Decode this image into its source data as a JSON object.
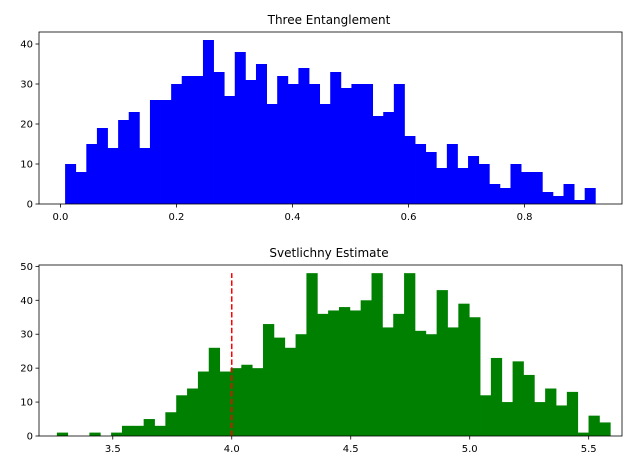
{
  "chart_data": [
    {
      "type": "bar",
      "subtype": "histogram",
      "title": "Three Entanglement",
      "xlabel": "",
      "ylabel": "",
      "color": "#0000ff",
      "grid": false,
      "xlim": [
        -0.037,
        0.968
      ],
      "ylim": [
        0,
        43
      ],
      "bin_start": 0.008,
      "bin_width": 0.01828,
      "counts": [
        10,
        8,
        15,
        19,
        14,
        21,
        23,
        14,
        26,
        26,
        30,
        32,
        32,
        41,
        33,
        27,
        38,
        31,
        35,
        25,
        32,
        30,
        34,
        30,
        25,
        33,
        29,
        30,
        30,
        22,
        23,
        30,
        17,
        15,
        13,
        9,
        15,
        9,
        12,
        10,
        5,
        4,
        10,
        8,
        8,
        3,
        2,
        5,
        1,
        4
      ],
      "x_ticks": [
        0.0,
        0.2,
        0.4,
        0.6,
        0.8
      ],
      "x_tick_labels": [
        "0.0",
        "0.2",
        "0.4",
        "0.6",
        "0.8"
      ],
      "y_ticks": [
        0,
        10,
        20,
        30,
        40
      ],
      "y_tick_labels": [
        "0",
        "10",
        "20",
        "30",
        "40"
      ]
    },
    {
      "type": "bar",
      "subtype": "histogram",
      "title": "Svetlichny Estimate",
      "xlabel": "",
      "ylabel": "",
      "color": "#008000",
      "grid": false,
      "xlim": [
        3.19,
        5.64
      ],
      "ylim": [
        0,
        50.4
      ],
      "bin_start": 3.265,
      "bin_width": 0.0456,
      "counts": [
        1,
        0,
        0,
        1,
        0,
        1,
        3,
        3,
        5,
        3,
        7,
        12,
        14,
        19,
        26,
        19,
        20,
        21,
        20,
        33,
        29,
        26,
        30,
        48,
        36,
        37,
        38,
        37,
        40,
        48,
        32,
        36,
        48,
        31,
        30,
        43,
        32,
        39,
        35,
        12,
        23,
        10,
        22,
        18,
        10,
        14,
        9,
        13,
        1,
        6,
        4
      ],
      "x_ticks": [
        3.5,
        4.0,
        4.5,
        5.0,
        5.5
      ],
      "x_tick_labels": [
        "3.5",
        "4.0",
        "4.5",
        "5.0",
        "5.5"
      ],
      "y_ticks": [
        0,
        10,
        20,
        30,
        40,
        50
      ],
      "y_tick_labels": [
        "0",
        "10",
        "20",
        "30",
        "40",
        "50"
      ],
      "reference_line": {
        "x": 4.0,
        "y_range": [
          0,
          48
        ],
        "color": "#ff0000",
        "style": "dashed"
      }
    }
  ]
}
